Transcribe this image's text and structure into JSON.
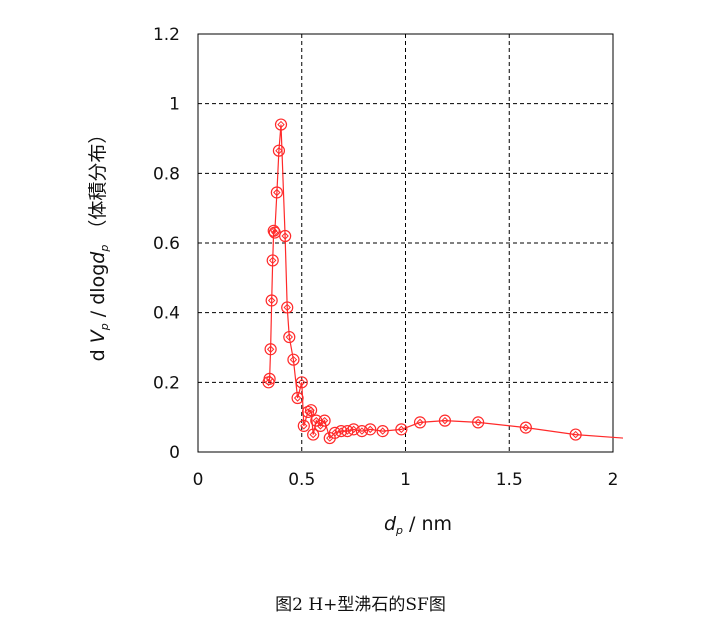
{
  "chart_data": {
    "type": "line",
    "title": "",
    "caption": "图2 H+型沸石的SF图",
    "xlabel": {
      "main": "d",
      "sub": "p",
      "unit": " / nm"
    },
    "ylabel": {
      "d": "d ",
      "v": "V",
      "vsub": "p",
      "mid": " / dlog",
      "d2": "d",
      "d2sub": "p",
      "suffix": " （体積分布）"
    },
    "xlim": [
      0,
      2
    ],
    "ylim": [
      0,
      1.2
    ],
    "xticks": [
      "0",
      "0.5",
      "1",
      "1.5",
      "2"
    ],
    "yticks": [
      "0",
      "0.2",
      "0.4",
      "0.6",
      "0.8",
      "1",
      "1.2"
    ],
    "grid": true,
    "series": [
      {
        "color": "#ff2a2a",
        "x": [
          0.34,
          0.345,
          0.35,
          0.355,
          0.36,
          0.365,
          0.37,
          0.38,
          0.39,
          0.4,
          0.42,
          0.43,
          0.44,
          0.46,
          0.48,
          0.5,
          0.51,
          0.53,
          0.545,
          0.555,
          0.57,
          0.59,
          0.61,
          0.635,
          0.66,
          0.69,
          0.72,
          0.75,
          0.79,
          0.83,
          0.89,
          0.98,
          1.07,
          1.19,
          1.35,
          1.58,
          1.82
        ],
        "y": [
          0.2,
          0.21,
          0.295,
          0.435,
          0.55,
          0.635,
          0.63,
          0.745,
          0.865,
          0.94,
          0.62,
          0.415,
          0.33,
          0.265,
          0.155,
          0.2,
          0.075,
          0.115,
          0.12,
          0.05,
          0.09,
          0.075,
          0.09,
          0.04,
          0.055,
          0.06,
          0.06,
          0.065,
          0.06,
          0.065,
          0.06,
          0.065,
          0.085,
          0.09,
          0.085,
          0.07,
          0.05
        ]
      }
    ],
    "curve": {
      "x": [
        0.34,
        0.345,
        0.35,
        0.355,
        0.36,
        0.365,
        0.37,
        0.38,
        0.39,
        0.4,
        0.42,
        0.43,
        0.44,
        0.46,
        0.48,
        0.5,
        0.51,
        0.53,
        0.545,
        0.555,
        0.57,
        0.59,
        0.61,
        0.635,
        0.66,
        0.69,
        0.72,
        0.75,
        0.79,
        0.83,
        0.89,
        0.98,
        1.07,
        1.19,
        1.35,
        1.58,
        1.82,
        2.05
      ],
      "y": [
        0.2,
        0.21,
        0.295,
        0.435,
        0.55,
        0.635,
        0.63,
        0.745,
        0.865,
        0.94,
        0.62,
        0.415,
        0.33,
        0.265,
        0.155,
        0.2,
        0.075,
        0.115,
        0.12,
        0.05,
        0.09,
        0.075,
        0.09,
        0.04,
        0.055,
        0.06,
        0.06,
        0.065,
        0.06,
        0.065,
        0.06,
        0.065,
        0.085,
        0.09,
        0.085,
        0.07,
        0.05,
        0.04
      ]
    }
  }
}
